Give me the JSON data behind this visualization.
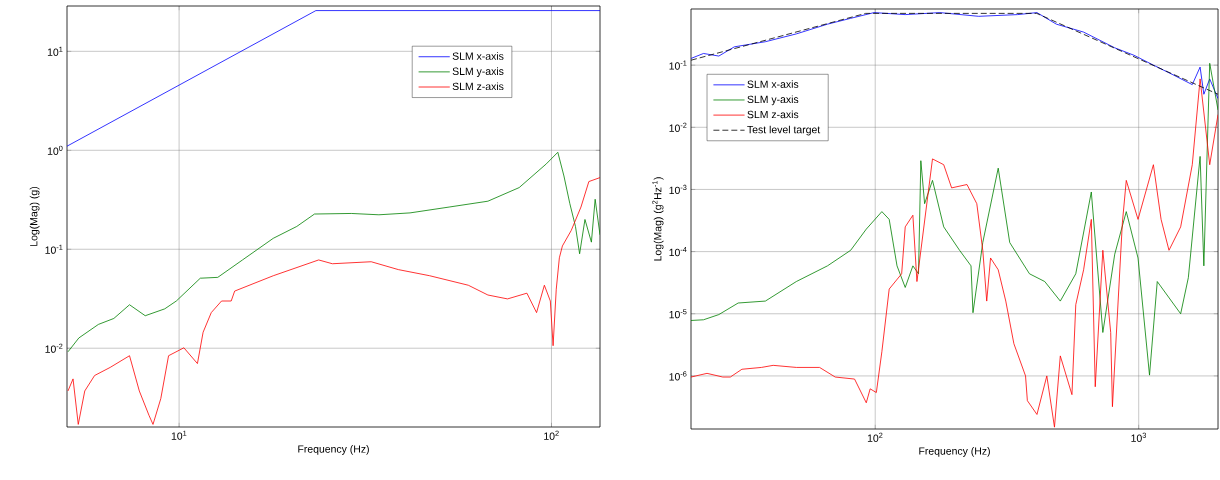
{
  "chart_data": [
    {
      "type": "line",
      "xlabel": "Frequency (Hz)",
      "ylabel": "Log(Mag) (g)",
      "log": "xy",
      "grid": true,
      "legend": "top right",
      "xlim": [
        5,
        135
      ],
      "ylim": [
        0.0016,
        28.7
      ],
      "xticks": [
        {
          "value": 10,
          "label": "10$^{1}$"
        },
        {
          "value": 100,
          "label": "10$^{2}$"
        }
      ],
      "yticks": [
        {
          "value": 0.01,
          "label": "10$^{-2}$"
        },
        {
          "value": 0.1,
          "label": "10$^{-1}$"
        },
        {
          "value": 1,
          "label": "10$^{0}$"
        },
        {
          "value": 10,
          "label": "10$^{1}$"
        }
      ],
      "series": [
        {
          "name": "SLM x-axis",
          "color": "#0000ff",
          "x": [
            5,
            23.3,
            135
          ],
          "values": [
            1.1,
            25.8,
            25.8
          ]
        },
        {
          "name": "SLM y-axis",
          "color": "#008000",
          "x": [
            5.03,
            5.38,
            6.07,
            6.68,
            7.36,
            8.11,
            9.15,
            9.83,
            11.4,
            12.7,
            14.8,
            17.9,
            20.7,
            23.1,
            29.0,
            34.4,
            41.7,
            53.1,
            67.5,
            81.9,
            96.9,
            104,
            108,
            112,
            116,
            119,
            123,
            128,
            131,
            135
          ],
          "values": [
            0.0092,
            0.0127,
            0.0174,
            0.02,
            0.0275,
            0.0213,
            0.025,
            0.03,
            0.051,
            0.052,
            0.078,
            0.129,
            0.17,
            0.227,
            0.23,
            0.223,
            0.233,
            0.267,
            0.306,
            0.42,
            0.73,
            0.955,
            0.55,
            0.29,
            0.17,
            0.09,
            0.2,
            0.118,
            0.32,
            0.14
          ]
        },
        {
          "name": "SLM z-axis",
          "color": "#ff0000",
          "x": [
            5.03,
            5.19,
            5.36,
            5.58,
            5.93,
            6.53,
            7.36,
            7.82,
            8.3,
            8.51,
            8.93,
            9.37,
            10.3,
            11.2,
            11.6,
            12.2,
            13.0,
            13.8,
            14.1,
            17.9,
            23.7,
            25.8,
            32.8,
            38.8,
            47.1,
            59.8,
            67.5,
            76.2,
            85.9,
            91.2,
            95.7,
            99.3,
            101,
            103,
            105,
            107,
            113,
            120,
            126,
            135
          ],
          "values": [
            0.0037,
            0.0049,
            0.0017,
            0.0037,
            0.0053,
            0.0064,
            0.0084,
            0.0037,
            0.0021,
            0.0017,
            0.0031,
            0.0084,
            0.0101,
            0.007,
            0.0145,
            0.0229,
            0.03,
            0.03,
            0.0378,
            0.054,
            0.078,
            0.0714,
            0.0748,
            0.0623,
            0.054,
            0.0433,
            0.0345,
            0.0315,
            0.036,
            0.0229,
            0.0433,
            0.03,
            0.0106,
            0.0395,
            0.082,
            0.108,
            0.155,
            0.267,
            0.483,
            0.53
          ]
        }
      ]
    },
    {
      "type": "line",
      "xlabel": "Frequency (Hz)",
      "ylabel": "Log(Mag) (g$^{2}$Hz$^{-1}$)",
      "log": "xy",
      "grid": true,
      "legend": "top left",
      "xlim": [
        20,
        2000
      ],
      "ylim": [
        1.4e-07,
        0.8
      ],
      "xticks": [
        {
          "value": 100,
          "label": "10$^{2}$"
        },
        {
          "value": 1000,
          "label": "10$^{3}$"
        }
      ],
      "yticks": [
        {
          "value": 1e-06,
          "label": "10$^{-6}$"
        },
        {
          "value": 1e-05,
          "label": "10$^{-5}$"
        },
        {
          "value": 0.0001,
          "label": "10$^{-4}$"
        },
        {
          "value": 0.001,
          "label": "10$^{-3}$"
        },
        {
          "value": 0.01,
          "label": "10$^{-2}$"
        },
        {
          "value": 0.1,
          "label": "10$^{-1}$"
        }
      ],
      "series": [
        {
          "name": "SLM x-axis",
          "color": "#0000ff",
          "x": [
            20,
            22.3,
            25.5,
            29.2,
            38.3,
            50.2,
            65.9,
            80.7,
            99,
            130,
            176,
            247,
            347,
            411,
            487,
            618,
            811,
            960,
            1137,
            1349,
            1597,
            1710,
            1767,
            1860,
            2000
          ],
          "values": [
            0.128,
            0.154,
            0.14,
            0.197,
            0.238,
            0.318,
            0.456,
            0.566,
            0.7,
            0.65,
            0.7,
            0.61,
            0.65,
            0.7,
            0.456,
            0.34,
            0.19,
            0.144,
            0.1,
            0.07,
            0.0486,
            0.093,
            0.034,
            0.06,
            0.029
          ]
        },
        {
          "name": "SLM y-axis",
          "color": "#008000",
          "x": [
            20,
            22.3,
            25.5,
            30.2,
            38.3,
            50.2,
            65.9,
            80.7,
            92.5,
            106,
            113,
            121,
            130,
            139,
            146,
            149,
            154,
            165,
            182,
            209,
            231,
            235,
            256,
            293,
            324,
            385,
            440,
            504,
            577,
            661,
            731,
            811,
            897,
            994,
            1099,
            1176,
            1443,
            1543,
            1710,
            1767,
            1860,
            2000
          ],
          "values": [
            7.8e-06,
            8e-06,
            9.7e-06,
            1.49e-05,
            1.6e-05,
            3.3e-05,
            5.9e-05,
            0.000105,
            0.00023,
            0.00044,
            0.00033,
            5.9e-05,
            2.65e-05,
            5.9e-05,
            4.4e-05,
            0.0029,
            0.00059,
            0.0014,
            0.00025,
            0.000105,
            5.9e-05,
            1.04e-05,
            0.00014,
            0.0022,
            0.00014,
            4.4e-05,
            3.3e-05,
            1.6e-05,
            4.4e-05,
            0.00091,
            5e-06,
            9.1e-05,
            0.00044,
            7.9e-05,
            1.03e-06,
            3.3e-05,
            1e-05,
            3.8e-05,
            0.0034,
            5.9e-05,
            0.107,
            0.019
          ]
        },
        {
          "name": "SLM z-axis",
          "color": "#ff0000",
          "x": [
            20,
            23.0,
            26.4,
            28.2,
            31.2,
            37.0,
            41.0,
            50.2,
            61.5,
            70.5,
            83.5,
            92.5,
            95.7,
            101,
            106,
            113,
            126,
            130,
            139,
            144,
            165,
            182,
            195,
            223,
            243,
            256,
            265,
            274,
            293,
            313,
            336,
            372,
            378,
            411,
            448,
            479,
            504,
            558,
            577,
            618,
            661,
            684,
            731,
            783,
            795,
            867,
            897,
            994,
            1137,
            1216,
            1303,
            1443,
            1597,
            1710,
            1860,
            2000
          ],
          "values": [
            9.6e-07,
            1.1e-06,
            9.6e-07,
            9.6e-07,
            1.28e-06,
            1.37e-06,
            1.48e-06,
            1.37e-06,
            1.37e-06,
            9.6e-07,
            8.9e-07,
            3.7e-07,
            6.2e-07,
            5.4e-07,
            2.45e-06,
            2.5e-05,
            4.4e-05,
            0.00025,
            0.000385,
            3.3e-05,
            0.0031,
            0.0025,
            0.00106,
            0.0012,
            0.00059,
            0.000105,
            1.6e-05,
            7.9e-05,
            5.1e-05,
            1.6e-05,
            3.3e-06,
            1e-06,
            4e-07,
            2.4e-07,
            1e-06,
            1.5e-07,
            2.1e-06,
            5e-07,
            1.4e-05,
            5.1e-05,
            0.00033,
            6.7e-07,
            0.000105,
            5e-06,
            3.2e-07,
            0.00029,
            0.0014,
            0.00033,
            0.0025,
            0.00033,
            0.000105,
            0.00025,
            0.0025,
            0.06,
            0.0025,
            0.016
          ]
        },
        {
          "name": "Test level target",
          "color": "#000000",
          "line_style": "dashed",
          "x": [
            20,
            92,
            410,
            2000
          ],
          "values": [
            0.12,
            0.68,
            0.68,
            0.034
          ]
        }
      ]
    }
  ]
}
